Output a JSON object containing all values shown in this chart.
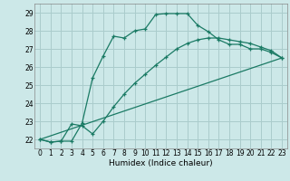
{
  "xlabel": "Humidex (Indice chaleur)",
  "background_color": "#cce8e8",
  "grid_color": "#aacccc",
  "line_color": "#1a7a64",
  "xlim": [
    -0.5,
    23.5
  ],
  "ylim": [
    21.5,
    29.5
  ],
  "yticks": [
    22,
    23,
    24,
    25,
    26,
    27,
    28,
    29
  ],
  "xticks": [
    0,
    1,
    2,
    3,
    4,
    5,
    6,
    7,
    8,
    9,
    10,
    11,
    12,
    13,
    14,
    15,
    16,
    17,
    18,
    19,
    20,
    21,
    22,
    23
  ],
  "line1_x": [
    0,
    23
  ],
  "line1_y": [
    22.0,
    26.5
  ],
  "line2_x": [
    0,
    1,
    2,
    3,
    4,
    5,
    6,
    7,
    8,
    9,
    10,
    11,
    12,
    13,
    14,
    15,
    16,
    17,
    18,
    19,
    20,
    21,
    22,
    23
  ],
  "line2_y": [
    22.0,
    21.85,
    21.9,
    21.9,
    22.9,
    25.4,
    26.6,
    27.7,
    27.6,
    28.0,
    28.1,
    28.9,
    28.95,
    28.95,
    28.95,
    28.3,
    27.95,
    27.5,
    27.25,
    27.25,
    27.0,
    27.0,
    26.8,
    26.5
  ],
  "line3_x": [
    0,
    1,
    2,
    3,
    4,
    5,
    6,
    7,
    8,
    9,
    10,
    11,
    12,
    13,
    14,
    15,
    16,
    17,
    18,
    19,
    20,
    21,
    22,
    23
  ],
  "line3_y": [
    22.0,
    21.85,
    21.9,
    22.85,
    22.75,
    22.3,
    23.0,
    23.8,
    24.5,
    25.1,
    25.6,
    26.1,
    26.55,
    27.0,
    27.3,
    27.5,
    27.6,
    27.6,
    27.5,
    27.4,
    27.3,
    27.1,
    26.9,
    26.5
  ],
  "xlabel_fontsize": 6.5,
  "tick_fontsize": 5.5
}
